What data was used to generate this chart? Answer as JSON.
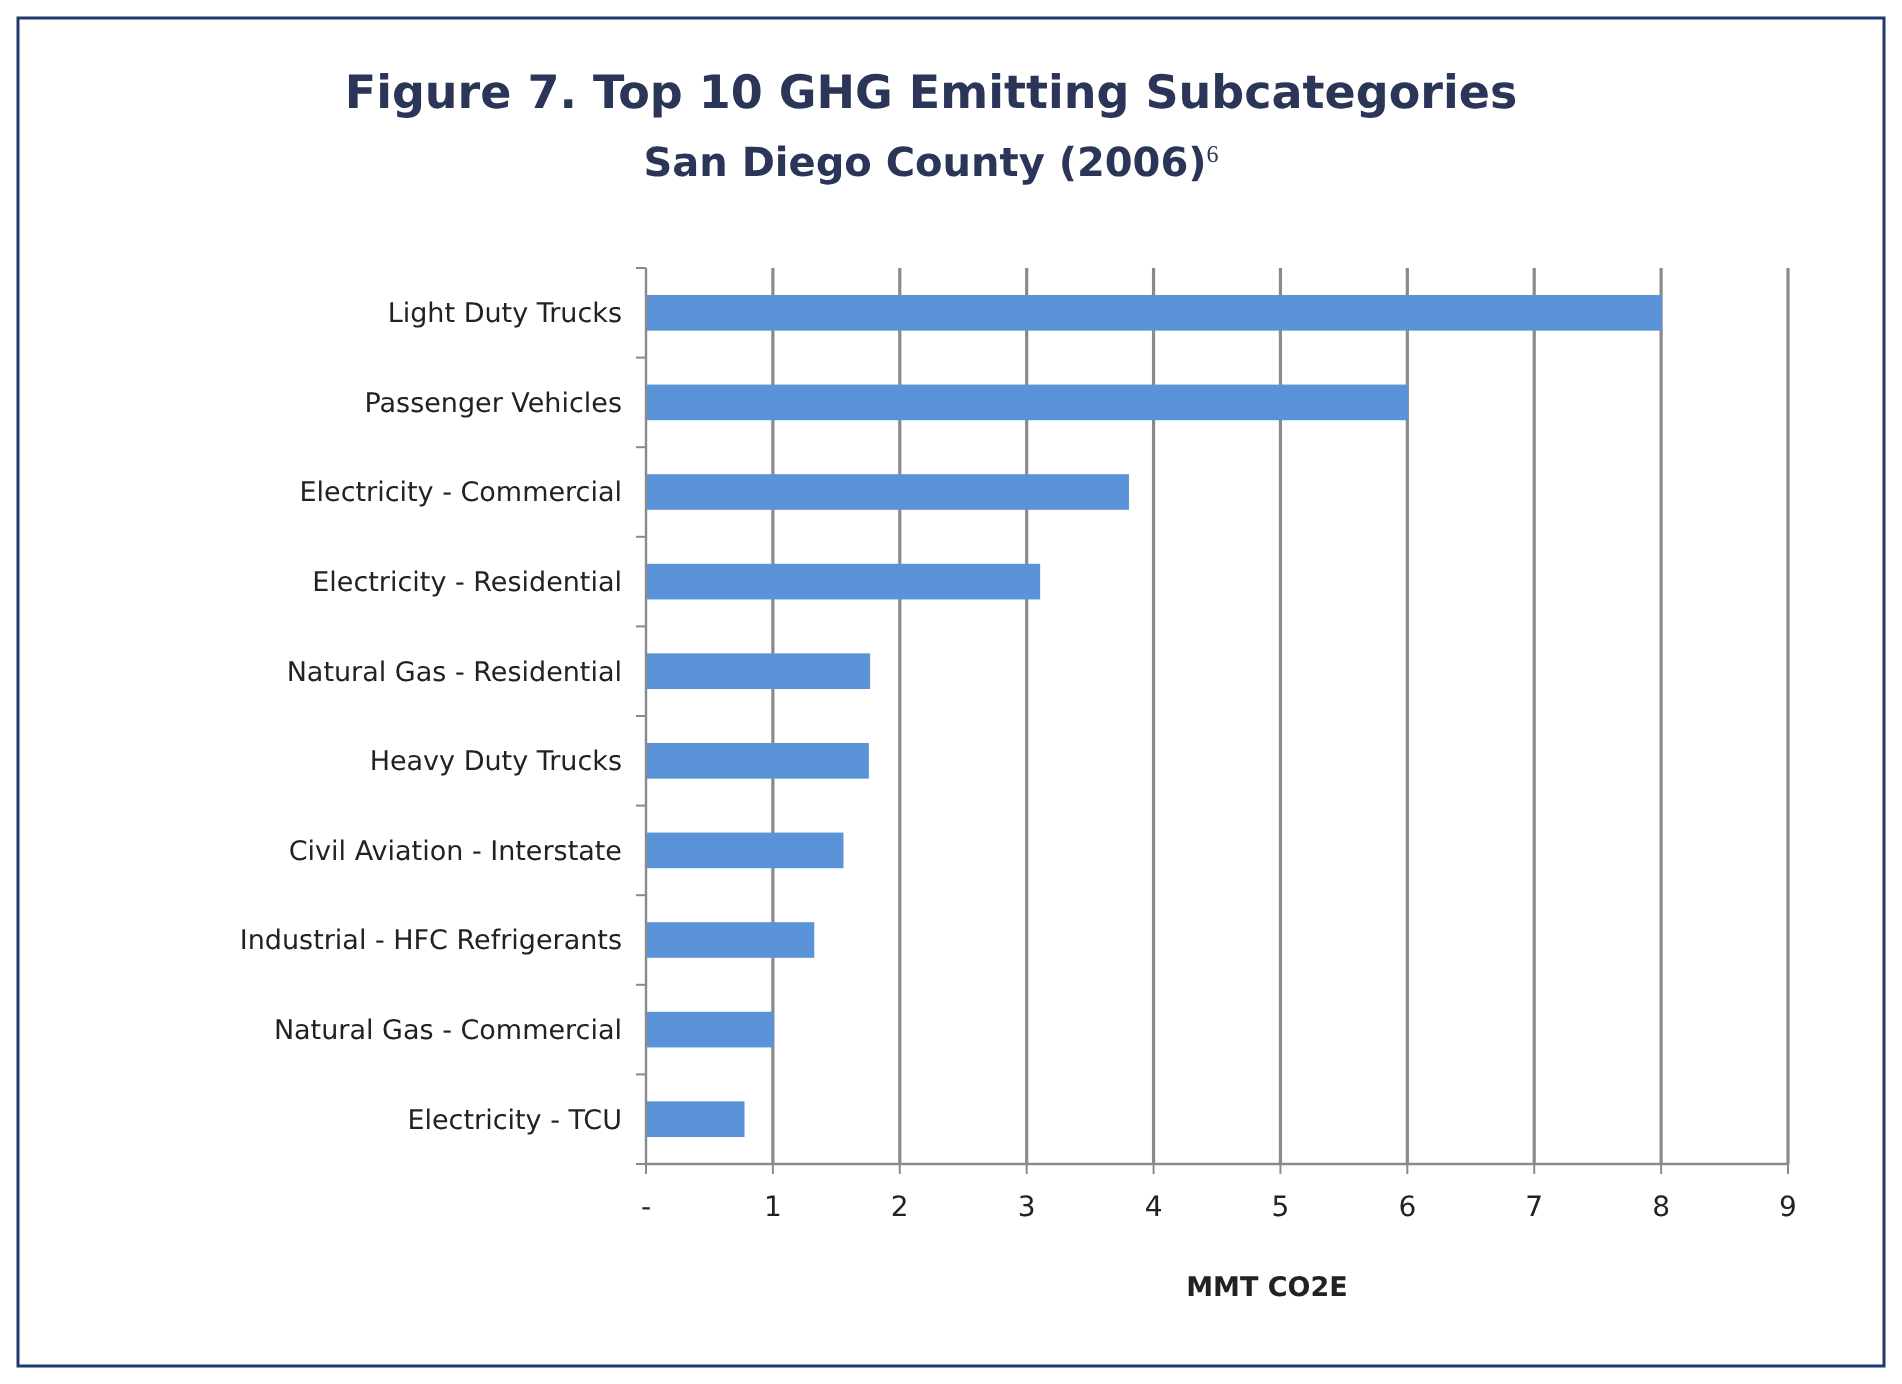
{
  "chart_data": {
    "type": "bar",
    "orientation": "horizontal",
    "title": "Figure 7.  Top 10 GHG Emitting Subcategories",
    "subtitle": "San Diego County (2006)$^{6}$",
    "xlabel": "MMT CO2E",
    "categories": [
      "Light Duty Trucks",
      "Passenger Vehicles",
      "Electricity - Commercial",
      "Electricity - Residential",
      "Natural Gas - Residential",
      "Heavy Duty Trucks",
      "Civil Aviation - Interstate",
      "Industrial - HFC Refrigerants",
      "Natural Gas - Commercial",
      "Electricity - TCU"
    ],
    "values": [
      8.0,
      6.0,
      3.8,
      3.1,
      1.76,
      1.75,
      1.55,
      1.32,
      1.0,
      0.77
    ],
    "color": "#5b93d8",
    "xlim": [
      0,
      9
    ],
    "xticks": [
      {
        "value": 0,
        "label": "-"
      },
      1,
      2,
      3,
      4,
      5,
      6,
      7,
      8,
      9
    ],
    "grid": "x"
  }
}
